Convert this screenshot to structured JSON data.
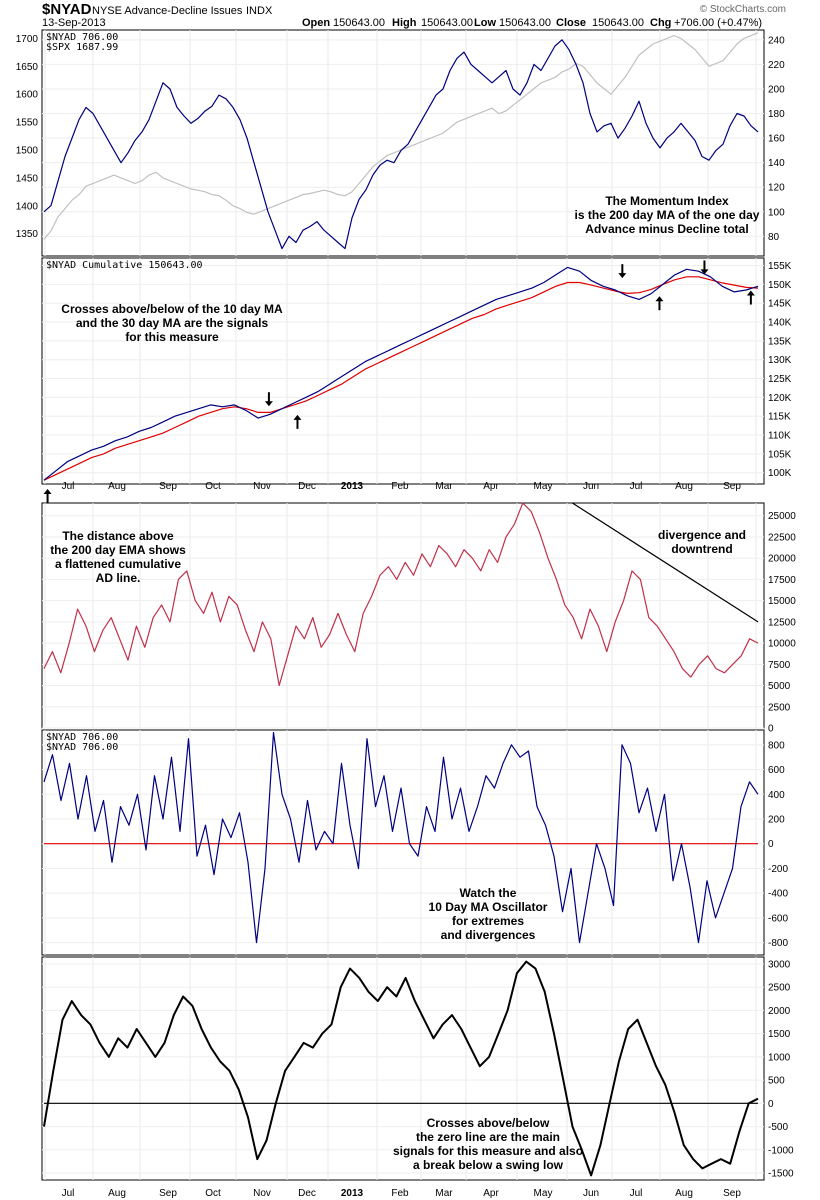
{
  "header": {
    "symbol": "$NYAD",
    "name": "NYSE Advance-Decline Issues",
    "exchange": "INDX",
    "date": "13-Sep-2013",
    "open_label": "Open",
    "open": "150643.00",
    "high_label": "High",
    "high": "150643.00",
    "low_label": "Low",
    "low": "150643.00",
    "close_label": "Close",
    "close": "150643.00",
    "chg_label": "Chg",
    "chg": "+706.00 (+0.47%)",
    "watermark": "© StockCharts.com"
  },
  "x_axis": {
    "months": [
      "Jul",
      "Aug",
      "Sep",
      "Oct",
      "Nov",
      "Dec",
      "2013",
      "Feb",
      "Mar",
      "Apr",
      "May",
      "Jun",
      "Jul",
      "Aug",
      "Sep"
    ],
    "bold_label": "2013"
  },
  "chart_data": [
    {
      "type": "line",
      "panel": "momentum",
      "legend": [
        "$NYAD  706.00",
        "$SPX  1687.99"
      ],
      "left_axis_ticks": [
        1350,
        1400,
        1450,
        1500,
        1550,
        1600,
        1650,
        1700
      ],
      "right_axis_ticks": [
        80,
        100,
        120,
        140,
        160,
        180,
        200,
        220,
        240
      ],
      "left_ylim": [
        1310,
        1715
      ],
      "right_ylim": [
        64,
        248
      ],
      "annotation": [
        "The Momentum Index",
        "is the 200 day MA of the one day",
        "Advance minus Decline total"
      ],
      "series": [
        {
          "color": "#000080",
          "axis": "right",
          "values": [
            100,
            105,
            125,
            145,
            160,
            175,
            185,
            180,
            170,
            160,
            150,
            140,
            148,
            158,
            165,
            175,
            190,
            205,
            200,
            185,
            178,
            172,
            176,
            182,
            186,
            195,
            192,
            185,
            175,
            160,
            140,
            120,
            100,
            85,
            70,
            80,
            75,
            85,
            88,
            92,
            85,
            80,
            75,
            70,
            95,
            110,
            118,
            130,
            138,
            142,
            140,
            150,
            155,
            165,
            175,
            185,
            195,
            200,
            215,
            225,
            230,
            220,
            215,
            210,
            205,
            210,
            215,
            200,
            195,
            205,
            220,
            215,
            225,
            235,
            240,
            232,
            220,
            205,
            180,
            165,
            170,
            172,
            160,
            168,
            178,
            190,
            172,
            160,
            152,
            160,
            165,
            172,
            165,
            158,
            145,
            142,
            150,
            155,
            170,
            180,
            178,
            170,
            165
          ]
        },
        {
          "color": "#c0c0c0",
          "axis": "left",
          "values": [
            1340,
            1355,
            1380,
            1395,
            1410,
            1420,
            1435,
            1440,
            1445,
            1450,
            1455,
            1450,
            1445,
            1440,
            1445,
            1455,
            1460,
            1450,
            1445,
            1440,
            1435,
            1430,
            1428,
            1425,
            1420,
            1418,
            1410,
            1400,
            1395,
            1388,
            1385,
            1390,
            1395,
            1400,
            1405,
            1410,
            1415,
            1420,
            1422,
            1425,
            1428,
            1425,
            1420,
            1418,
            1425,
            1440,
            1455,
            1470,
            1480,
            1490,
            1495,
            1500,
            1505,
            1510,
            1515,
            1520,
            1525,
            1530,
            1540,
            1550,
            1555,
            1560,
            1565,
            1570,
            1575,
            1565,
            1570,
            1580,
            1590,
            1600,
            1610,
            1620,
            1625,
            1630,
            1640,
            1645,
            1655,
            1650,
            1635,
            1620,
            1610,
            1600,
            1615,
            1630,
            1650,
            1670,
            1680,
            1690,
            1695,
            1700,
            1705,
            1700,
            1690,
            1680,
            1665,
            1650,
            1655,
            1660,
            1675,
            1690,
            1700,
            1705,
            1710
          ]
        }
      ]
    },
    {
      "type": "line",
      "panel": "cumulative",
      "legend": [
        "$NYAD  Cumulative 150643.00"
      ],
      "right_axis_ticks": [
        "100K",
        "105K",
        "110K",
        "115K",
        "120K",
        "125K",
        "130K",
        "135K",
        "140K",
        "145K",
        "150K",
        "155K"
      ],
      "ylim": [
        97000,
        157000
      ],
      "annotation": [
        "Crosses above/below of the 10 day MA",
        "and the 30 day MA are the signals",
        "for this measure"
      ],
      "series": [
        {
          "color": "#000080",
          "values": [
            98000,
            100500,
            103000,
            104500,
            106000,
            107000,
            108500,
            109500,
            111000,
            112000,
            113500,
            115000,
            116000,
            117000,
            118000,
            117500,
            118000,
            116500,
            114500,
            115500,
            117000,
            118500,
            120000,
            121500,
            123500,
            125500,
            127500,
            129500,
            131000,
            132500,
            134000,
            135500,
            137000,
            138500,
            140000,
            141500,
            143000,
            144500,
            146000,
            147000,
            148000,
            149000,
            150500,
            152500,
            154500,
            153500,
            151000,
            149500,
            148500,
            147000,
            146000,
            147500,
            150000,
            152500,
            154000,
            153500,
            152000,
            149500,
            148000,
            148500,
            149500
          ]
        },
        {
          "color": "#e00000",
          "values": [
            98000,
            99500,
            101000,
            102500,
            104000,
            105000,
            106500,
            107500,
            108500,
            109500,
            110500,
            112000,
            113500,
            115000,
            116000,
            117000,
            117500,
            117000,
            116000,
            116000,
            117000,
            118000,
            119000,
            120500,
            122000,
            123500,
            125500,
            127500,
            129000,
            130500,
            132000,
            133500,
            135000,
            136500,
            138000,
            139500,
            141000,
            142000,
            143500,
            144500,
            145500,
            146500,
            148000,
            149500,
            150500,
            150500,
            149800,
            149000,
            148200,
            147600,
            147800,
            148600,
            150000,
            151200,
            152000,
            152000,
            151200,
            150400,
            149800,
            149200,
            149000
          ]
        }
      ],
      "markers": [
        {
          "dir": "up",
          "x_frac": 0.005,
          "y": 97500
        },
        {
          "dir": "down",
          "x_frac": 0.315,
          "y": 119500
        },
        {
          "dir": "up",
          "x_frac": 0.355,
          "y": 113500
        },
        {
          "dir": "down",
          "x_frac": 0.81,
          "y": 153500
        },
        {
          "dir": "up",
          "x_frac": 0.862,
          "y": 145000
        },
        {
          "dir": "down",
          "x_frac": 0.925,
          "y": 154500
        },
        {
          "dir": "up",
          "x_frac": 0.99,
          "y": 146500
        }
      ]
    },
    {
      "type": "line",
      "panel": "distance_above_ema",
      "right_axis_ticks": [
        0,
        2500,
        5000,
        7500,
        10000,
        12500,
        15000,
        17500,
        20000,
        22500,
        25000
      ],
      "ylim": [
        0,
        26500
      ],
      "annotation_left": [
        "The distance above",
        "the 200 day EMA shows",
        "a flattened cumulative",
        "AD line."
      ],
      "annotation_right": [
        "divergence and",
        "downtrend"
      ],
      "series": [
        {
          "color": "#c0304a",
          "values": [
            7000,
            9000,
            6500,
            10000,
            14000,
            12000,
            9000,
            11500,
            13000,
            10500,
            8000,
            12000,
            9500,
            13000,
            14500,
            12500,
            17500,
            18500,
            15000,
            13500,
            16000,
            12500,
            15500,
            14500,
            11500,
            9000,
            12500,
            10500,
            5000,
            8500,
            12000,
            10500,
            13000,
            9500,
            11000,
            13500,
            11000,
            9000,
            13500,
            15500,
            18000,
            19000,
            17500,
            19500,
            18000,
            20500,
            19000,
            21500,
            20500,
            19000,
            21000,
            20000,
            18500,
            21000,
            19500,
            22500,
            24000,
            26500,
            25500,
            23000,
            20000,
            17500,
            14500,
            13000,
            10500,
            14000,
            12000,
            9000,
            12500,
            15000,
            18500,
            17500,
            13000,
            12000,
            10500,
            9000,
            7000,
            6000,
            7500,
            8500,
            7000,
            6500,
            7500,
            8500,
            10500,
            10000
          ]
        },
        {
          "color": "#000000",
          "values": [
            26500,
            12500
          ],
          "x_range_frac": [
            0.74,
            1.0
          ]
        }
      ]
    },
    {
      "type": "line",
      "panel": "oscillator",
      "legend": [
        "$NYAD  706.00",
        "$NYAD  706.00"
      ],
      "right_axis_ticks": [
        -800,
        -600,
        -400,
        -200,
        0,
        200,
        400,
        600,
        800
      ],
      "ylim": [
        -900,
        920
      ],
      "annotation": [
        "Watch the",
        "10 Day MA Oscillator",
        "for extremes",
        "and divergences"
      ],
      "series": [
        {
          "color": "#000080",
          "values": [
            500,
            720,
            350,
            650,
            200,
            550,
            100,
            350,
            -150,
            300,
            150,
            400,
            -50,
            550,
            200,
            700,
            100,
            850,
            -100,
            150,
            -250,
            200,
            50,
            250,
            -150,
            -800,
            -200,
            900,
            400,
            200,
            -150,
            350,
            -50,
            100,
            0,
            650,
            150,
            -200,
            850,
            300,
            550,
            100,
            450,
            0,
            -100,
            300,
            100,
            700,
            200,
            450,
            100,
            300,
            550,
            450,
            650,
            800,
            700,
            750,
            300,
            150,
            -100,
            -550,
            -200,
            -800,
            -400,
            0,
            -200,
            -500,
            800,
            650,
            250,
            450,
            100,
            400,
            -300,
            0,
            -350,
            -800,
            -300,
            -600,
            -400,
            -200,
            300,
            500,
            400
          ]
        },
        {
          "color": "#e00000",
          "values": [
            0,
            0
          ],
          "x_range_frac": [
            0,
            1.0
          ]
        }
      ]
    },
    {
      "type": "line",
      "panel": "ad_indicator",
      "right_axis_ticks": [
        -1500,
        -1000,
        -500,
        0,
        500,
        1000,
        1500,
        2000,
        2500,
        3000
      ],
      "ylim": [
        -1650,
        3150
      ],
      "annotation": [
        "Crosses above/below",
        "the zero line are the main",
        "signals for this measure and also",
        "a break below a swing low"
      ],
      "series": [
        {
          "color": "#000000",
          "values": [
            -500,
            700,
            1800,
            2200,
            1900,
            1700,
            1300,
            1000,
            1400,
            1200,
            1600,
            1300,
            1000,
            1300,
            1900,
            2300,
            2100,
            1600,
            1200,
            900,
            700,
            300,
            -300,
            -1200,
            -800,
            0,
            700,
            1000,
            1300,
            1200,
            1500,
            1700,
            2500,
            2900,
            2700,
            2400,
            2200,
            2500,
            2300,
            2700,
            2200,
            1800,
            1400,
            1700,
            1900,
            1600,
            1200,
            800,
            1000,
            1500,
            2000,
            2800,
            3050,
            2900,
            2400,
            1500,
            500,
            -500,
            -1000,
            -1550,
            -900,
            0,
            900,
            1600,
            1800,
            1300,
            800,
            400,
            -200,
            -900,
            -1200,
            -1400,
            -1300,
            -1200,
            -1300,
            -600,
            0,
            100
          ]
        },
        {
          "color": "#000000",
          "values": [
            0,
            0
          ],
          "x_range_frac": [
            0,
            1.0
          ]
        }
      ]
    }
  ]
}
